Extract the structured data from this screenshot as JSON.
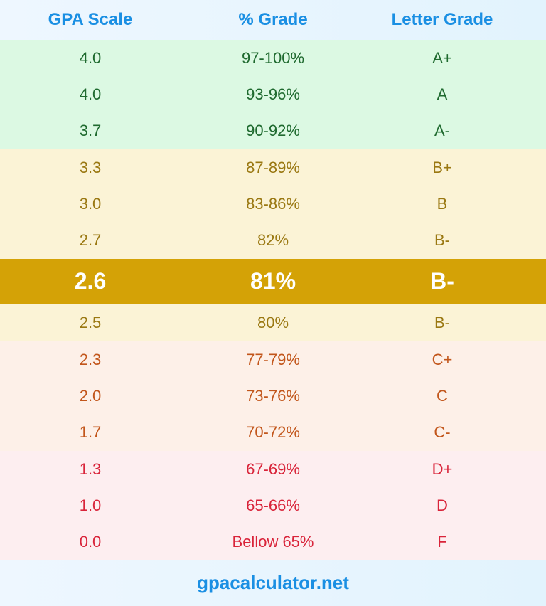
{
  "header": {
    "gpa": "GPA Scale",
    "percent": "% Grade",
    "letter": "Letter Grade"
  },
  "rows": [
    {
      "gpa": "4.0",
      "percent": "97-100%",
      "letter": "A+",
      "tier": "green"
    },
    {
      "gpa": "4.0",
      "percent": "93-96%",
      "letter": "A",
      "tier": "green"
    },
    {
      "gpa": "3.7",
      "percent": "90-92%",
      "letter": "A-",
      "tier": "green"
    },
    {
      "gpa": "3.3",
      "percent": "87-89%",
      "letter": "B+",
      "tier": "yellow"
    },
    {
      "gpa": "3.0",
      "percent": "83-86%",
      "letter": "B",
      "tier": "yellow"
    },
    {
      "gpa": "2.7",
      "percent": "82%",
      "letter": "B-",
      "tier": "yellow"
    },
    {
      "gpa": "2.6",
      "percent": "81%",
      "letter": "B-",
      "tier": "highlight"
    },
    {
      "gpa": "2.5",
      "percent": "80%",
      "letter": "B-",
      "tier": "yellow"
    },
    {
      "gpa": "2.3",
      "percent": "77-79%",
      "letter": "C+",
      "tier": "orange"
    },
    {
      "gpa": "2.0",
      "percent": "73-76%",
      "letter": "C",
      "tier": "orange"
    },
    {
      "gpa": "1.7",
      "percent": "70-72%",
      "letter": "C-",
      "tier": "orange"
    },
    {
      "gpa": "1.3",
      "percent": "67-69%",
      "letter": "D+",
      "tier": "red"
    },
    {
      "gpa": "1.0",
      "percent": "65-66%",
      "letter": "D",
      "tier": "red"
    },
    {
      "gpa": "0.0",
      "percent": "Bellow 65%",
      "letter": "F",
      "tier": "red"
    }
  ],
  "footer": {
    "site": "gpacalculator.net"
  },
  "colors": {
    "header_text": "#1a8fe3",
    "highlight": "#d4a206",
    "green": "#1f6a2f",
    "yellow": "#9a7812",
    "orange": "#c2561b",
    "red": "#d9243a"
  }
}
